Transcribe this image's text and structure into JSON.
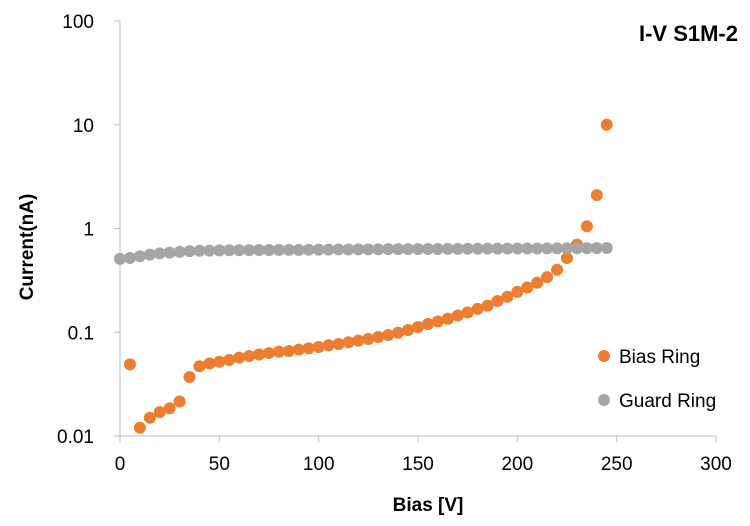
{
  "chart_data": {
    "type": "scatter",
    "title": "I-V S1M-2",
    "xlabel": "Bias [V]",
    "ylabel": "Current(nA)",
    "xlim": [
      0,
      300
    ],
    "ylim": [
      0.01,
      100
    ],
    "yscale": "log",
    "x_ticks": [
      0,
      50,
      100,
      150,
      200,
      250,
      300
    ],
    "y_ticks": [
      0.01,
      0.1,
      1,
      10,
      100
    ],
    "x_tick_labels": [
      "0",
      "50",
      "100",
      "150",
      "200",
      "250",
      "300"
    ],
    "y_tick_labels": [
      "0.01",
      "0.1",
      "1",
      "10",
      "100"
    ],
    "legend_position": "right",
    "series": [
      {
        "name": "Bias Ring",
        "color": "#ED7D31",
        "x": [
          5,
          10,
          15,
          20,
          25,
          30,
          35,
          40,
          45,
          50,
          55,
          60,
          65,
          70,
          75,
          80,
          85,
          90,
          95,
          100,
          105,
          110,
          115,
          120,
          125,
          130,
          135,
          140,
          145,
          150,
          155,
          160,
          165,
          170,
          175,
          180,
          185,
          190,
          195,
          200,
          205,
          210,
          215,
          220,
          225,
          230,
          235,
          240,
          245
        ],
        "y": [
          0.049,
          0.012,
          0.015,
          0.017,
          0.0185,
          0.0215,
          0.037,
          0.047,
          0.05,
          0.052,
          0.054,
          0.057,
          0.059,
          0.061,
          0.063,
          0.065,
          0.066,
          0.068,
          0.07,
          0.072,
          0.075,
          0.077,
          0.08,
          0.083,
          0.086,
          0.09,
          0.094,
          0.099,
          0.105,
          0.112,
          0.12,
          0.127,
          0.135,
          0.145,
          0.155,
          0.168,
          0.18,
          0.2,
          0.22,
          0.245,
          0.27,
          0.3,
          0.34,
          0.4,
          0.52,
          0.7,
          1.05,
          2.1,
          10.0
        ]
      },
      {
        "name": "Guard Ring",
        "color": "#A5A5A5",
        "x": [
          0,
          5,
          10,
          15,
          20,
          25,
          30,
          35,
          40,
          45,
          50,
          55,
          60,
          65,
          70,
          75,
          80,
          85,
          90,
          95,
          100,
          105,
          110,
          115,
          120,
          125,
          130,
          135,
          140,
          145,
          150,
          155,
          160,
          165,
          170,
          175,
          180,
          185,
          190,
          195,
          200,
          205,
          210,
          215,
          220,
          225,
          230,
          235,
          240,
          245
        ],
        "y": [
          0.51,
          0.52,
          0.54,
          0.56,
          0.575,
          0.585,
          0.595,
          0.605,
          0.61,
          0.612,
          0.615,
          0.617,
          0.618,
          0.619,
          0.62,
          0.621,
          0.622,
          0.622,
          0.623,
          0.624,
          0.625,
          0.626,
          0.627,
          0.628,
          0.629,
          0.63,
          0.631,
          0.632,
          0.632,
          0.633,
          0.634,
          0.635,
          0.635,
          0.636,
          0.637,
          0.638,
          0.638,
          0.639,
          0.64,
          0.64,
          0.641,
          0.642,
          0.642,
          0.643,
          0.644,
          0.645,
          0.645,
          0.646,
          0.647,
          0.648
        ]
      }
    ]
  }
}
